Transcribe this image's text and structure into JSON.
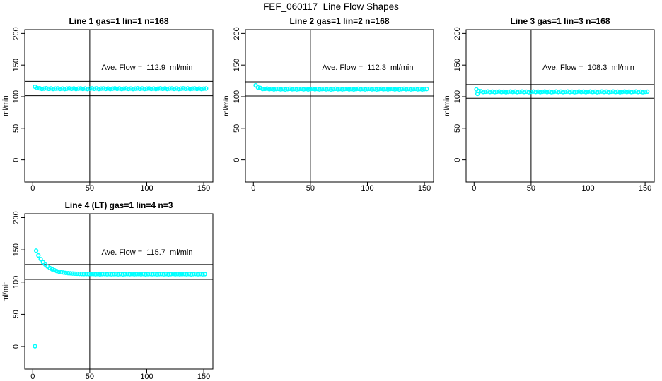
{
  "page_title": "FEF_060117  Line Flow Shapes",
  "colors": {
    "points": "#00FFFF",
    "axis": "#000000",
    "background": "#FFFFFF"
  },
  "axes": {
    "x_ticks": [
      0,
      50,
      100,
      150
    ],
    "y_ticks": [
      0,
      50,
      100,
      150,
      200
    ],
    "x_range": [
      -7,
      158
    ],
    "y_range": [
      -35,
      206
    ],
    "y_label": "ml/min",
    "grid": false
  },
  "chart_data": [
    {
      "type": "scatter",
      "title": "Line 1 gas=1 lin=1 n=168",
      "ave_flow_label": "Ave. Flow =  112.9  ml/min",
      "ave_flow": 112.9,
      "hlines": [
        124.2,
        101.6
      ],
      "vline": 50,
      "x": [
        2,
        4,
        6,
        8,
        10,
        12,
        14,
        16,
        18,
        20,
        22,
        24,
        26,
        28,
        30,
        32,
        34,
        36,
        38,
        40,
        42,
        44,
        46,
        48,
        50,
        52,
        54,
        56,
        58,
        60,
        62,
        64,
        66,
        68,
        70,
        72,
        74,
        76,
        78,
        80,
        82,
        84,
        86,
        88,
        90,
        92,
        94,
        96,
        98,
        100,
        102,
        104,
        106,
        108,
        110,
        112,
        114,
        116,
        118,
        120,
        122,
        124,
        126,
        128,
        130,
        132,
        134,
        136,
        138,
        140,
        142,
        144,
        146,
        148,
        150,
        152
      ],
      "y": [
        115.6,
        113.5,
        113.3,
        112.3,
        112.7,
        113.2,
        112.4,
        112.9,
        112.2,
        112.7,
        113.0,
        112.3,
        112.8,
        112.1,
        112.6,
        113.1,
        112.4,
        112.9,
        112.2,
        112.7,
        113.0,
        112.3,
        112.8,
        112.1,
        112.6,
        113.1,
        112.4,
        112.9,
        112.2,
        112.7,
        113.0,
        112.3,
        112.8,
        112.1,
        112.6,
        113.1,
        112.4,
        112.9,
        112.2,
        112.7,
        113.0,
        112.3,
        112.8,
        112.1,
        112.6,
        113.1,
        112.4,
        112.9,
        112.2,
        112.7,
        113.0,
        112.3,
        112.8,
        112.1,
        112.6,
        113.1,
        112.4,
        112.9,
        112.2,
        112.7,
        113.0,
        112.3,
        112.8,
        112.1,
        112.6,
        113.1,
        112.4,
        112.9,
        112.2,
        112.7,
        113.0,
        112.3,
        112.8,
        112.1,
        112.6,
        112.8
      ]
    },
    {
      "type": "scatter",
      "title": "Line 2 gas=1 lin=2 n=168",
      "ave_flow_label": "Ave. Flow =  112.3  ml/min",
      "ave_flow": 112.3,
      "hlines": [
        123.5,
        101.1
      ],
      "vline": 50,
      "x": [
        2,
        4,
        6,
        8,
        10,
        12,
        14,
        16,
        18,
        20,
        22,
        24,
        26,
        28,
        30,
        32,
        34,
        36,
        38,
        40,
        42,
        44,
        46,
        48,
        50,
        52,
        54,
        56,
        58,
        60,
        62,
        64,
        66,
        68,
        70,
        72,
        74,
        76,
        78,
        80,
        82,
        84,
        86,
        88,
        90,
        92,
        94,
        96,
        98,
        100,
        102,
        104,
        106,
        108,
        110,
        112,
        114,
        116,
        118,
        120,
        122,
        124,
        126,
        128,
        130,
        132,
        134,
        136,
        138,
        140,
        142,
        144,
        146,
        148,
        150,
        152
      ],
      "y": [
        117.9,
        114.5,
        113.6,
        112.2,
        112.3,
        112.6,
        111.8,
        112.3,
        111.5,
        112.0,
        112.3,
        111.6,
        112.1,
        111.4,
        111.9,
        112.4,
        111.7,
        112.2,
        111.5,
        112.0,
        112.3,
        111.6,
        112.1,
        111.4,
        111.9,
        112.4,
        111.7,
        112.2,
        111.5,
        112.0,
        112.3,
        111.6,
        112.1,
        111.4,
        111.9,
        112.4,
        111.7,
        112.2,
        111.5,
        112.0,
        112.3,
        111.6,
        112.1,
        111.4,
        111.9,
        112.4,
        111.7,
        112.2,
        111.5,
        112.0,
        112.3,
        111.6,
        112.1,
        111.4,
        111.9,
        112.4,
        111.7,
        112.2,
        111.5,
        112.0,
        112.3,
        111.6,
        112.1,
        111.4,
        111.9,
        112.4,
        111.7,
        112.2,
        111.5,
        112.0,
        112.3,
        111.6,
        112.1,
        111.4,
        111.9,
        112.1
      ]
    },
    {
      "type": "scatter",
      "title": "Line 3 gas=1 lin=3 n=168",
      "ave_flow_label": "Ave. Flow =  108.3  ml/min",
      "ave_flow": 108.3,
      "hlines": [
        119.1,
        97.5
      ],
      "vline": 50,
      "x": [
        2,
        3,
        4,
        6,
        8,
        10,
        12,
        14,
        16,
        18,
        20,
        22,
        24,
        26,
        28,
        30,
        32,
        34,
        36,
        38,
        40,
        42,
        44,
        46,
        48,
        50,
        52,
        54,
        56,
        58,
        60,
        62,
        64,
        66,
        68,
        70,
        72,
        74,
        76,
        78,
        80,
        82,
        84,
        86,
        88,
        90,
        92,
        94,
        96,
        98,
        100,
        102,
        104,
        106,
        108,
        110,
        112,
        114,
        116,
        118,
        120,
        122,
        124,
        126,
        128,
        130,
        132,
        134,
        136,
        138,
        140,
        142,
        144,
        146,
        148,
        150,
        152
      ],
      "y": [
        111.5,
        104.5,
        108.9,
        108.6,
        107.5,
        107.8,
        108.3,
        107.5,
        108.0,
        107.3,
        107.8,
        108.1,
        107.4,
        107.9,
        107.2,
        107.7,
        108.2,
        107.5,
        108.0,
        107.3,
        107.8,
        108.1,
        107.4,
        107.9,
        107.2,
        107.7,
        108.2,
        107.5,
        108.0,
        107.3,
        107.8,
        108.1,
        107.4,
        107.9,
        107.2,
        107.7,
        108.2,
        107.5,
        108.0,
        107.3,
        107.8,
        108.1,
        107.4,
        107.9,
        107.2,
        107.7,
        108.2,
        107.5,
        108.0,
        107.3,
        107.8,
        108.1,
        107.4,
        107.9,
        107.2,
        107.7,
        108.2,
        107.5,
        108.0,
        107.3,
        107.8,
        108.1,
        107.4,
        107.9,
        107.2,
        107.7,
        108.2,
        107.5,
        108.0,
        107.3,
        107.8,
        108.1,
        107.4,
        107.9,
        107.2,
        107.7,
        107.9
      ]
    },
    {
      "type": "scatter",
      "title": "Line 4 (LT) gas=1 lin=4 n=3",
      "ave_flow_label": "Ave. Flow =  115.7  ml/min",
      "ave_flow": 115.7,
      "hlines": [
        127.3,
        104.1
      ],
      "vline": 50,
      "x": [
        2,
        3,
        5,
        7,
        9,
        11,
        13,
        15,
        17,
        19,
        21,
        23,
        25,
        27,
        29,
        31,
        33,
        35,
        37,
        39,
        41,
        43,
        45,
        47,
        49,
        51,
        53,
        55,
        57,
        59,
        61,
        63,
        65,
        67,
        69,
        71,
        73,
        75,
        77,
        79,
        81,
        83,
        85,
        87,
        89,
        91,
        93,
        95,
        97,
        99,
        101,
        103,
        105,
        107,
        109,
        111,
        113,
        115,
        117,
        119,
        121,
        123,
        125,
        127,
        129,
        131,
        133,
        135,
        137,
        139,
        141,
        143,
        145,
        147,
        149,
        151
      ],
      "y": [
        0.5,
        148.7,
        141.4,
        135.6,
        130.9,
        127.2,
        124.2,
        121.8,
        119.9,
        118.4,
        117.1,
        116.2,
        115.4,
        114.7,
        114.2,
        113.8,
        113.5,
        113.2,
        113.0,
        112.9,
        112.7,
        112.6,
        112.5,
        112.5,
        112.4,
        112.4,
        112.5,
        112.1,
        112.4,
        112.0,
        112.3,
        112.6,
        112.2,
        112.4,
        112.1,
        112.3,
        112.5,
        112.1,
        112.4,
        112.0,
        112.3,
        112.6,
        112.2,
        112.4,
        112.1,
        112.3,
        112.5,
        112.1,
        112.4,
        112.0,
        112.3,
        112.6,
        112.2,
        112.4,
        112.1,
        112.3,
        112.5,
        112.1,
        112.4,
        112.0,
        112.3,
        112.6,
        112.2,
        112.4,
        112.1,
        112.3,
        112.5,
        112.1,
        112.4,
        112.0,
        112.3,
        112.6,
        112.2,
        112.4,
        112.1,
        112.3
      ]
    }
  ]
}
